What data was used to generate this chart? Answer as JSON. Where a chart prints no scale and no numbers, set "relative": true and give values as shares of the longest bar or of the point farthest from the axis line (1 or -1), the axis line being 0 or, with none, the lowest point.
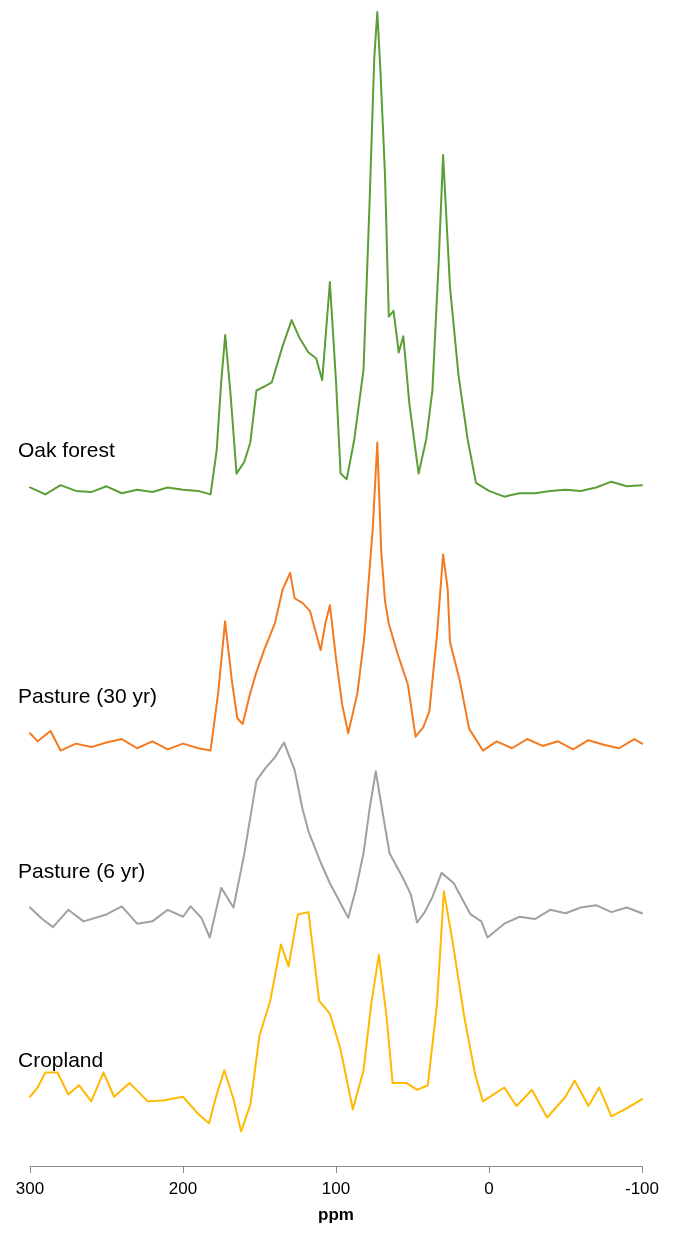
{
  "chart_data": {
    "type": "line",
    "relative": true,
    "xlabel": "ppm",
    "xlim": [
      300,
      -100
    ],
    "xticks": [
      300,
      200,
      100,
      0,
      -100
    ],
    "grid": false,
    "marker": "none",
    "line_style": "solid",
    "series": [
      {
        "name": "Oak forest",
        "color": "#5b9e35",
        "x": [
          300,
          290,
          280,
          270,
          260,
          250,
          240,
          230,
          220,
          210,
          200,
          190,
          182,
          178,
          175,
          172.4,
          169,
          165,
          160,
          156,
          152,
          146,
          142,
          135,
          129,
          124,
          118,
          113,
          109,
          104,
          100,
          97,
          93,
          88,
          82,
          78,
          75,
          73,
          71,
          68,
          65.5,
          62.4,
          59,
          56,
          52,
          46,
          41,
          37,
          33,
          30,
          27,
          25.5,
          20,
          14,
          8.5,
          0,
          -10,
          -20,
          -30,
          -40,
          -50,
          -60,
          -70,
          -80,
          -90,
          -100
        ],
        "values": [
          0.588,
          0.582,
          0.59,
          0.585,
          0.584,
          0.589,
          0.583,
          0.586,
          0.584,
          0.588,
          0.586,
          0.585,
          0.582,
          0.62,
          0.68,
          0.72,
          0.67,
          0.6,
          0.61,
          0.627,
          0.672,
          0.676,
          0.679,
          0.71,
          0.733,
          0.718,
          0.705,
          0.7,
          0.681,
          0.766,
          0.68,
          0.6,
          0.595,
          0.63,
          0.69,
          0.837,
          0.96,
          1.0,
          0.95,
          0.86,
          0.736,
          0.741,
          0.705,
          0.719,
          0.66,
          0.6,
          0.63,
          0.672,
          0.78,
          0.876,
          0.8,
          0.762,
          0.686,
          0.63,
          0.592,
          0.585,
          0.58,
          0.583,
          0.583,
          0.585,
          0.586,
          0.585,
          0.588,
          0.593,
          0.589,
          0.59
        ]
      },
      {
        "name": "Pasture (30 yr)",
        "color": "#f47a20",
        "x": [
          300,
          295,
          286.6,
          280,
          270,
          260,
          250,
          240,
          230,
          220,
          210,
          200,
          190,
          182,
          177,
          172.5,
          168,
          164.5,
          161,
          156,
          152,
          147,
          140,
          135,
          130,
          127,
          122,
          117,
          110,
          107,
          104,
          100,
          96,
          92,
          86,
          81.5,
          76,
          73,
          70.5,
          68,
          65.5,
          60,
          53,
          48,
          43,
          39,
          34,
          30,
          27,
          25.5,
          19,
          13,
          4,
          -5,
          -15,
          -25,
          -35,
          -45,
          -55,
          -65,
          -75,
          -85,
          -95,
          -100
        ],
        "values": [
          0.375,
          0.368,
          0.377,
          0.36,
          0.366,
          0.363,
          0.367,
          0.37,
          0.362,
          0.368,
          0.361,
          0.366,
          0.362,
          0.36,
          0.41,
          0.472,
          0.42,
          0.388,
          0.383,
          0.41,
          0.428,
          0.447,
          0.47,
          0.499,
          0.514,
          0.492,
          0.488,
          0.481,
          0.447,
          0.47,
          0.486,
          0.44,
          0.4,
          0.375,
          0.41,
          0.458,
          0.552,
          0.627,
          0.534,
          0.49,
          0.47,
          0.445,
          0.417,
          0.372,
          0.38,
          0.394,
          0.46,
          0.53,
          0.5,
          0.454,
          0.42,
          0.379,
          0.36,
          0.368,
          0.362,
          0.37,
          0.364,
          0.368,
          0.361,
          0.369,
          0.365,
          0.362,
          0.37,
          0.366
        ]
      },
      {
        "name": "Pasture (6 yr)",
        "color": "#a0a0a0",
        "x": [
          300,
          292,
          285,
          275,
          265,
          250,
          240,
          230,
          220,
          210,
          200,
          195,
          188,
          182.5,
          175,
          167,
          160,
          152,
          146,
          140,
          134,
          127,
          122,
          118,
          110,
          104,
          98,
          92,
          87,
          82,
          78,
          74,
          70,
          65,
          56,
          51,
          47,
          42,
          37,
          31,
          23,
          17,
          12,
          5,
          1,
          -10,
          -20,
          -30,
          -40,
          -50,
          -60,
          -70,
          -80,
          -90,
          -100
        ],
        "values": [
          0.224,
          0.214,
          0.207,
          0.222,
          0.212,
          0.218,
          0.225,
          0.21,
          0.212,
          0.222,
          0.216,
          0.225,
          0.215,
          0.198,
          0.241,
          0.224,
          0.27,
          0.334,
          0.345,
          0.354,
          0.367,
          0.343,
          0.31,
          0.29,
          0.263,
          0.245,
          0.23,
          0.215,
          0.24,
          0.271,
          0.31,
          0.342,
          0.31,
          0.271,
          0.249,
          0.235,
          0.211,
          0.22,
          0.233,
          0.254,
          0.245,
          0.23,
          0.218,
          0.212,
          0.198,
          0.21,
          0.216,
          0.214,
          0.222,
          0.219,
          0.224,
          0.226,
          0.22,
          0.224,
          0.219
        ]
      },
      {
        "name": "Cropland",
        "color": "#ffb900",
        "x": [
          300,
          295,
          290,
          282,
          275,
          268,
          260,
          252,
          245,
          235,
          223,
          212,
          200,
          190,
          183,
          178,
          173,
          167,
          162,
          156,
          150,
          143,
          136,
          131,
          125,
          118,
          111,
          104,
          97,
          89,
          82,
          77,
          72,
          67,
          63,
          54,
          47,
          40,
          34,
          29.5,
          24,
          16,
          9,
          4,
          -10,
          -18,
          -28,
          -38,
          -50,
          -56,
          -65,
          -72,
          -80,
          -90,
          -100
        ],
        "values": [
          0.06,
          0.068,
          0.081,
          0.081,
          0.062,
          0.07,
          0.056,
          0.081,
          0.06,
          0.072,
          0.056,
          0.057,
          0.06,
          0.045,
          0.037,
          0.062,
          0.083,
          0.058,
          0.03,
          0.053,
          0.113,
          0.143,
          0.192,
          0.173,
          0.218,
          0.22,
          0.143,
          0.132,
          0.101,
          0.049,
          0.083,
          0.14,
          0.183,
          0.13,
          0.072,
          0.072,
          0.066,
          0.07,
          0.14,
          0.238,
          0.196,
          0.128,
          0.079,
          0.056,
          0.068,
          0.052,
          0.066,
          0.042,
          0.06,
          0.074,
          0.052,
          0.068,
          0.043,
          0.05,
          0.058
        ]
      }
    ]
  }
}
